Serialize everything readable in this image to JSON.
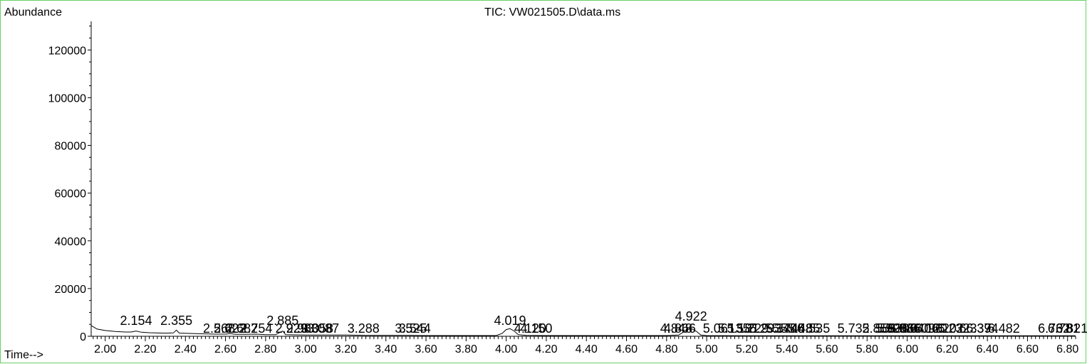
{
  "chart_data": {
    "type": "line",
    "title": "TIC: VW021505.D\\data.ms",
    "ylabel": "Abundance",
    "xlabel": "Time-->",
    "xlim": [
      1.93,
      6.84
    ],
    "ylim": [
      0,
      132000
    ],
    "x_ticks": [
      2.0,
      2.2,
      2.4,
      2.6,
      2.8,
      3.0,
      3.2,
      3.4,
      3.6,
      3.8,
      4.0,
      4.2,
      4.4,
      4.6,
      4.8,
      5.0,
      5.2,
      5.4,
      5.6,
      5.8,
      6.0,
      6.2,
      6.4,
      6.6,
      6.8
    ],
    "x_tick_labels": [
      "2.00",
      "2.20",
      "2.40",
      "2.60",
      "2.80",
      "3.00",
      "3.20",
      "3.40",
      "3.60",
      "3.80",
      "4.00",
      "4.20",
      "4.40",
      "4.60",
      "4.80",
      "5.00",
      "5.20",
      "5.40",
      "5.60",
      "5.80",
      "6.00",
      "6.20",
      "6.40",
      "6.60",
      "6.80"
    ],
    "y_ticks": [
      0,
      20000,
      40000,
      60000,
      80000,
      100000,
      120000
    ],
    "y_tick_labels": [
      "0",
      "20000",
      "40000",
      "60000",
      "80000",
      "100000",
      "120000"
    ],
    "grid": false,
    "series": [
      {
        "values": [
          [
            1.93,
            4500
          ],
          [
            1.96,
            3000
          ],
          [
            2.0,
            2400
          ],
          [
            2.05,
            2000
          ],
          [
            2.1,
            1800
          ],
          [
            2.13,
            1800
          ],
          [
            2.154,
            2200
          ],
          [
            2.18,
            1700
          ],
          [
            2.22,
            1500
          ],
          [
            2.3,
            1300
          ],
          [
            2.34,
            1400
          ],
          [
            2.355,
            2600
          ],
          [
            2.37,
            1300
          ],
          [
            2.45,
            1100
          ],
          [
            2.55,
            900
          ],
          [
            2.6,
            900
          ],
          [
            2.622,
            1100
          ],
          [
            2.65,
            800
          ],
          [
            2.7,
            800
          ],
          [
            2.754,
            900
          ],
          [
            2.8,
            700
          ],
          [
            2.85,
            700
          ],
          [
            2.885,
            2200
          ],
          [
            2.9,
            700
          ],
          [
            2.95,
            600
          ],
          [
            3.0,
            500
          ],
          [
            3.1,
            500
          ],
          [
            3.2,
            500
          ],
          [
            3.3,
            400
          ],
          [
            3.4,
            400
          ],
          [
            3.5,
            350
          ],
          [
            3.6,
            300
          ],
          [
            3.8,
            300
          ],
          [
            3.95,
            300
          ],
          [
            3.98,
            1200
          ],
          [
            4.0,
            2800
          ],
          [
            4.019,
            3200
          ],
          [
            4.04,
            2200
          ],
          [
            4.06,
            700
          ],
          [
            4.1,
            400
          ],
          [
            4.2,
            300
          ],
          [
            4.4,
            300
          ],
          [
            4.6,
            300
          ],
          [
            4.8,
            300
          ],
          [
            4.86,
            500
          ],
          [
            4.9,
            2600
          ],
          [
            4.922,
            3300
          ],
          [
            4.95,
            2000
          ],
          [
            4.97,
            500
          ],
          [
            5.0,
            300
          ],
          [
            5.2,
            250
          ],
          [
            5.4,
            250
          ],
          [
            5.6,
            250
          ],
          [
            5.8,
            200
          ],
          [
            6.0,
            200
          ],
          [
            6.2,
            200
          ],
          [
            6.4,
            200
          ],
          [
            6.6,
            200
          ],
          [
            6.84,
            200
          ]
        ]
      }
    ],
    "peak_labels": [
      {
        "x": 2.154,
        "label": "2.154"
      },
      {
        "x": 2.355,
        "label": "2.355"
      },
      {
        "x": 2.568,
        "label": "2.568"
      },
      {
        "x": 2.622,
        "label": "2.622"
      },
      {
        "x": 2.682,
        "label": "2.682"
      },
      {
        "x": 2.754,
        "label": "2.754"
      },
      {
        "x": 2.885,
        "label": "2.885"
      },
      {
        "x": 2.929,
        "label": "2.929"
      },
      {
        "x": 2.983,
        "label": "2.983"
      },
      {
        "x": 3.058,
        "label": "3.058"
      },
      {
        "x": 3.087,
        "label": "3.087"
      },
      {
        "x": 3.288,
        "label": "3.288"
      },
      {
        "x": 3.525,
        "label": "3.525"
      },
      {
        "x": 3.544,
        "label": "3.544"
      },
      {
        "x": 4.019,
        "label": "4.019"
      },
      {
        "x": 4.12,
        "label": "4.120"
      },
      {
        "x": 4.15,
        "label": "4.150"
      },
      {
        "x": 4.848,
        "label": "4.848"
      },
      {
        "x": 4.866,
        "label": "4.866"
      },
      {
        "x": 4.922,
        "label": "4.922"
      },
      {
        "x": 5.061,
        "label": "5.061"
      },
      {
        "x": 5.135,
        "label": "5.135"
      },
      {
        "x": 5.181,
        "label": "5.181"
      },
      {
        "x": 5.229,
        "label": "5.229"
      },
      {
        "x": 5.293,
        "label": "5.293"
      },
      {
        "x": 5.374,
        "label": "5.374"
      },
      {
        "x": 5.406,
        "label": "5.406"
      },
      {
        "x": 5.448,
        "label": "5.448"
      },
      {
        "x": 5.485,
        "label": "5.485"
      },
      {
        "x": 5.535,
        "label": "5.535"
      },
      {
        "x": 5.732,
        "label": "5.732"
      },
      {
        "x": 5.856,
        "label": "5.856"
      },
      {
        "x": 5.92,
        "label": "5.920"
      },
      {
        "x": 5.93,
        "label": "5.930"
      },
      {
        "x": 5.956,
        "label": "5.956"
      },
      {
        "x": 5.986,
        "label": "5.986"
      },
      {
        "x": 6.04,
        "label": "6.040"
      },
      {
        "x": 6.096,
        "label": "6.096"
      },
      {
        "x": 6.12,
        "label": "6.120"
      },
      {
        "x": 6.202,
        "label": "6.202"
      },
      {
        "x": 6.232,
        "label": "6.232"
      },
      {
        "x": 6.339,
        "label": "6.339"
      },
      {
        "x": 6.374,
        "label": "6.374"
      },
      {
        "x": 6.482,
        "label": "6.482"
      },
      {
        "x": 6.732,
        "label": "6.732"
      },
      {
        "x": 6.781,
        "label": "6.781"
      },
      {
        "x": 6.821,
        "label": "6.821"
      }
    ]
  }
}
